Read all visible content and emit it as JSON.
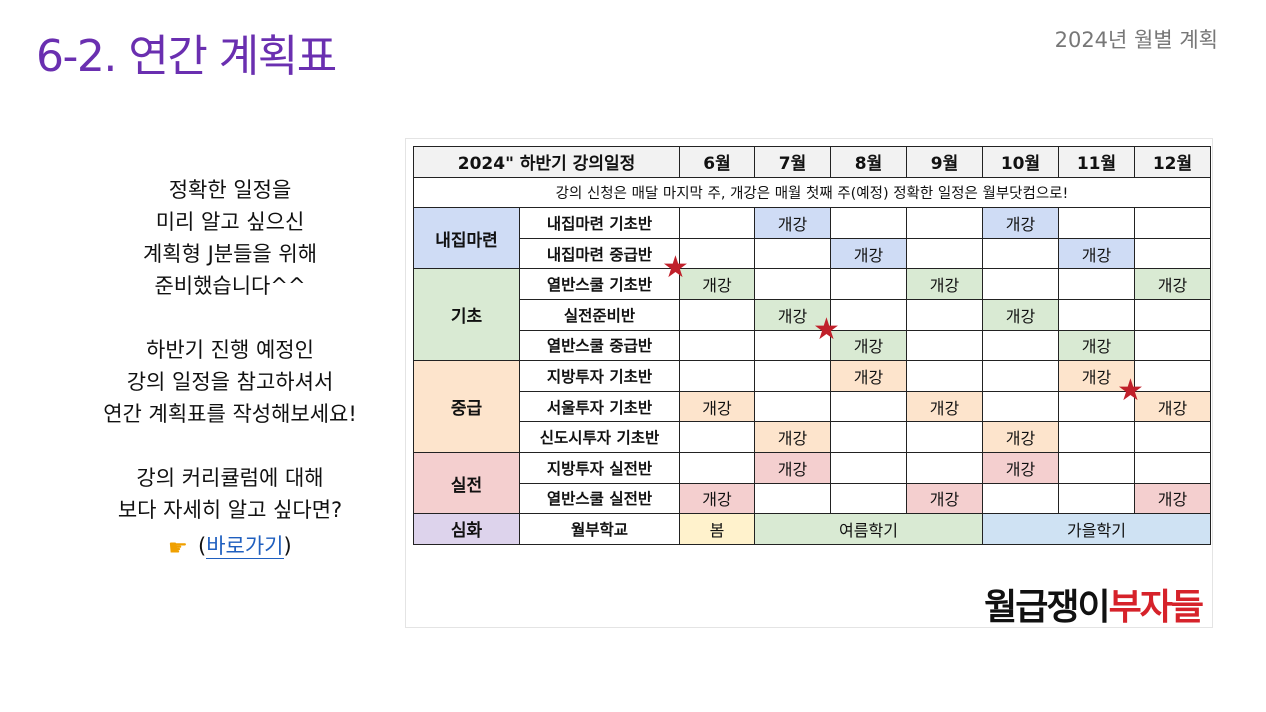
{
  "slide": {
    "title": "6-2. 연간 계획표",
    "subtitle": "2024년 월별 계획"
  },
  "left": {
    "para1": [
      "정확한 일정을",
      "미리 알고 싶으신",
      "계획형 J분들을 위해",
      "준비했습니다^^"
    ],
    "para2": [
      "하반기 진행 예정인",
      "강의 일정을 참고하셔서",
      "연간 계획표를 작성해보세요!"
    ],
    "para3": [
      "강의 커리큘럼에 대해",
      "보다 자세히 알고 싶다면?"
    ],
    "pointer_icon": "pointing-hand-icon",
    "link_open": "(",
    "link_text": "바로가기",
    "link_close": ")"
  },
  "table": {
    "header": {
      "title": "2024\" 하반기 강의일정",
      "months": [
        "6월",
        "7월",
        "8월",
        "9월",
        "10월",
        "11월",
        "12월"
      ]
    },
    "notice": "강의 신청은 매달 마지막 주, 개강은 매월 첫째 주(예정) 정확한 일정은 월부닷컴으로!",
    "cell_text": "개강",
    "categories": [
      {
        "name": "내집마련",
        "color": "#cfdcf5",
        "rows": [
          {
            "cls": "내집마련 기초반",
            "months": [
              7,
              10
            ]
          },
          {
            "cls": "내집마련 중급반",
            "months": [
              8,
              11
            ]
          }
        ]
      },
      {
        "name": "기초",
        "color": "#d9ead3",
        "rows": [
          {
            "cls": "열반스쿨 기초반",
            "months": [
              6,
              9,
              12
            ]
          },
          {
            "cls": "실전준비반",
            "months": [
              7,
              10
            ]
          },
          {
            "cls": "열반스쿨 중급반",
            "months": [
              8,
              11
            ]
          }
        ]
      },
      {
        "name": "중급",
        "color": "#fde4cc",
        "rows": [
          {
            "cls": "지방투자 기초반",
            "months": [
              8,
              11
            ]
          },
          {
            "cls": "서울투자 기초반",
            "months": [
              6,
              9,
              12
            ]
          },
          {
            "cls": "신도시투자 기초반",
            "months": [
              7,
              10
            ]
          }
        ]
      },
      {
        "name": "실전",
        "color": "#f4cfcf",
        "rows": [
          {
            "cls": "지방투자 실전반",
            "months": [
              7,
              10
            ]
          },
          {
            "cls": "열반스쿨 실전반",
            "months": [
              6,
              9,
              12
            ]
          }
        ]
      }
    ],
    "advanced": {
      "name": "심화",
      "cls": "월부학교",
      "terms": [
        {
          "label": "봄",
          "months": [
            6
          ]
        },
        {
          "label": "여름학기",
          "months": [
            7,
            8,
            9
          ]
        },
        {
          "label": "가을학기",
          "months": [
            10,
            11,
            12
          ]
        }
      ]
    }
  },
  "stars": [
    {
      "row": "열반스쿨 기초반",
      "month": 6
    },
    {
      "row": "열반스쿨 중급반",
      "month": 8
    },
    {
      "row": "서울투자 기초반",
      "month": 12
    }
  ],
  "brand": {
    "part1": "월급쟁이",
    "part2": "부자들"
  }
}
